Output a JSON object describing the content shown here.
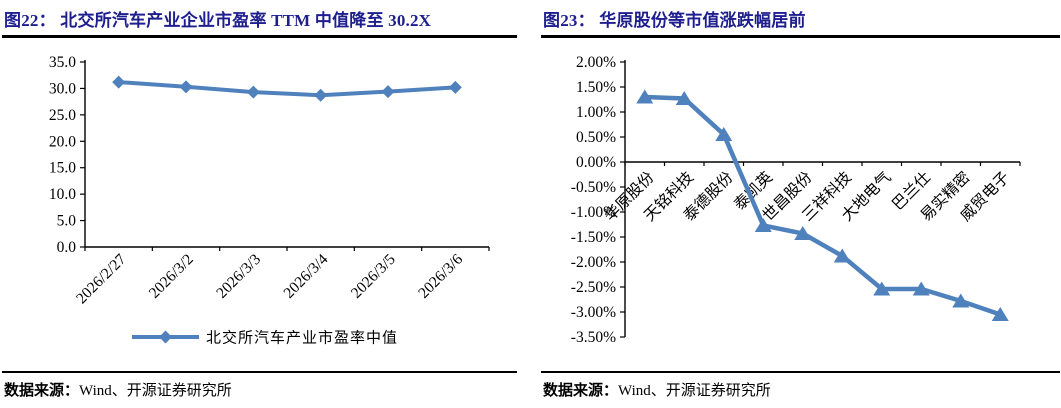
{
  "colors": {
    "accent": "#4F81BD",
    "title_navy": "#1E1E8F",
    "axis": "#000000"
  },
  "panels": [
    {
      "title": "图22：  北交所汽车产业企业市盈率 TTM 中值降至 30.2X",
      "source_label": "数据来源：",
      "source_text": "Wind、开源证券研究所"
    },
    {
      "title": "图23：  华原股份等市值涨跌幅居前",
      "source_label": "数据来源：",
      "source_text": "Wind、开源证券研究所"
    }
  ],
  "chart_data": [
    {
      "type": "line",
      "title": "北交所汽车产业企业市盈率TTM中值降至30.2X",
      "categories": [
        "2026/2/27",
        "2026/3/2",
        "2026/3/3",
        "2026/3/4",
        "2026/3/5",
        "2026/3/6"
      ],
      "series": [
        {
          "name": "北交所汽车产业市盈率中值",
          "values": [
            31.2,
            30.3,
            29.3,
            28.7,
            29.4,
            30.2
          ]
        }
      ],
      "ylim": [
        0,
        35
      ],
      "yticks": [
        {
          "v": 35,
          "label": "35.0"
        },
        {
          "v": 30,
          "label": "30.0"
        },
        {
          "v": 25,
          "label": "25.0"
        },
        {
          "v": 20,
          "label": "20.0"
        },
        {
          "v": 15,
          "label": "15.0"
        },
        {
          "v": 10,
          "label": "10.0"
        },
        {
          "v": 5,
          "label": "5.0"
        },
        {
          "v": 0,
          "label": "0.0"
        }
      ],
      "xlabel": "",
      "ylabel": "",
      "baseline": 0,
      "marker": "diamond",
      "grid": false,
      "legend_position": "bottom"
    },
    {
      "type": "line",
      "title": "华原股份等市值涨跌幅居前",
      "categories": [
        "华原股份",
        "天铭科技",
        "泰德股份",
        "泰凯英",
        "世昌股份",
        "三祥科技",
        "大地电气",
        "巴兰仕",
        "易实精密",
        "威贸电子"
      ],
      "series": [
        {
          "name": "市值涨跌幅",
          "values": [
            1.3,
            1.27,
            0.55,
            -1.27,
            -1.43,
            -1.88,
            -2.54,
            -2.54,
            -2.78,
            -3.05
          ]
        }
      ],
      "unit": "%",
      "ylim": [
        -3.5,
        2.0
      ],
      "yticks": [
        {
          "v": 2.0,
          "label": "2.00%"
        },
        {
          "v": 1.5,
          "label": "1.50%"
        },
        {
          "v": 1.0,
          "label": "1.00%"
        },
        {
          "v": 0.5,
          "label": "0.50%"
        },
        {
          "v": 0.0,
          "label": "0.00%"
        },
        {
          "v": -0.5,
          "label": "-0.50%"
        },
        {
          "v": -1.0,
          "label": "-1.00%"
        },
        {
          "v": -1.5,
          "label": "-1.50%"
        },
        {
          "v": -2.0,
          "label": "-2.00%"
        },
        {
          "v": -2.5,
          "label": "-2.50%"
        },
        {
          "v": -3.0,
          "label": "-3.00%"
        },
        {
          "v": -3.5,
          "label": "-3.50%"
        }
      ],
      "xlabel": "",
      "ylabel": "",
      "baseline": 0,
      "marker": "triangle",
      "grid": false,
      "legend_position": "none"
    }
  ]
}
